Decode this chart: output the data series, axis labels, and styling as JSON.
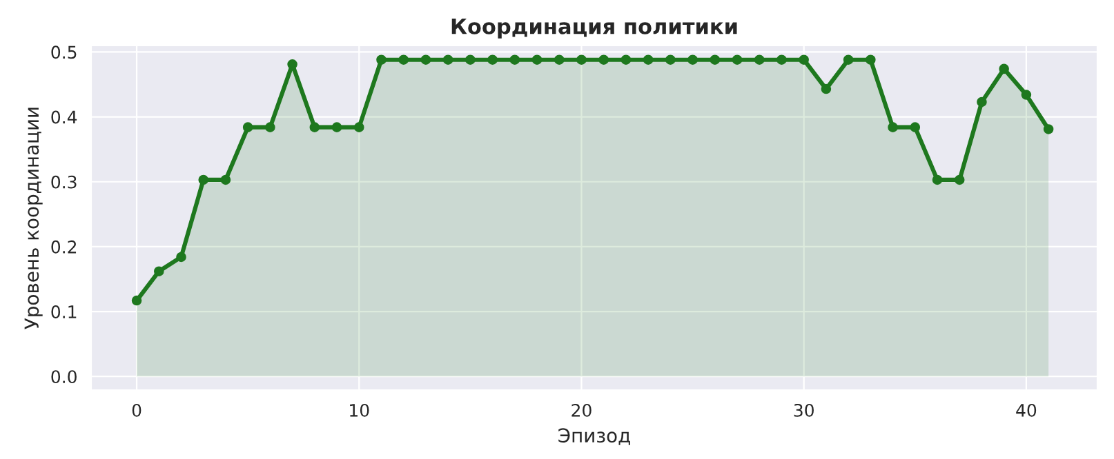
{
  "chart_data": {
    "type": "area",
    "title": "Координация политики",
    "xlabel": "Эпизод",
    "ylabel": "Уровень координации",
    "x": [
      0,
      1,
      2,
      3,
      4,
      5,
      6,
      7,
      8,
      9,
      10,
      11,
      12,
      13,
      14,
      15,
      16,
      17,
      18,
      19,
      20,
      21,
      22,
      23,
      24,
      25,
      26,
      27,
      28,
      29,
      30,
      31,
      32,
      33,
      34,
      35,
      36,
      37,
      38,
      39,
      40,
      41
    ],
    "series": [
      {
        "color": "#1e781e",
        "values": [
          0.117,
          0.162,
          0.184,
          0.303,
          0.303,
          0.384,
          0.384,
          0.481,
          0.384,
          0.384,
          0.384,
          0.488,
          0.488,
          0.488,
          0.488,
          0.488,
          0.488,
          0.488,
          0.488,
          0.488,
          0.488,
          0.488,
          0.488,
          0.488,
          0.488,
          0.488,
          0.488,
          0.488,
          0.488,
          0.488,
          0.488,
          0.443,
          0.488,
          0.488,
          0.384,
          0.384,
          0.303,
          0.303,
          0.423,
          0.474,
          0.434,
          0.381
        ]
      }
    ],
    "xlim": [
      -2.05,
      43.2
    ],
    "ylim": [
      -0.021,
      0.51
    ],
    "xticks": [
      0,
      10,
      20,
      30,
      40
    ],
    "yticks": [
      {
        "value": 0,
        "label": "0.0"
      },
      {
        "value": 0.1,
        "label": "0.1"
      },
      {
        "value": 0.2,
        "label": "0.2"
      },
      {
        "value": 0.3,
        "label": "0.3"
      },
      {
        "value": 0.4,
        "label": "0.4"
      },
      {
        "value": 0.5,
        "label": "0.5"
      }
    ],
    "grid": true,
    "marker": "circle",
    "line_style": "solid"
  }
}
